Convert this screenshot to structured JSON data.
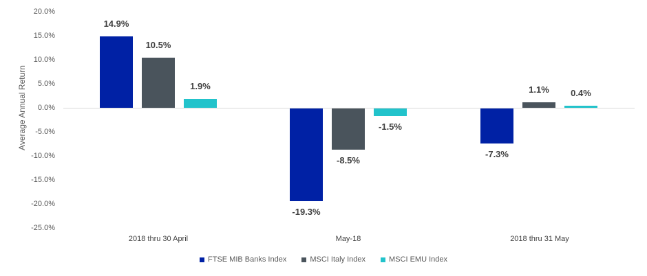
{
  "chart_data": {
    "type": "bar",
    "title": "",
    "xlabel": "",
    "ylabel": "Average Annual Return",
    "ylim": [
      -25,
      20
    ],
    "yticks": [
      "20.0%",
      "15.0%",
      "10.0%",
      "5.0%",
      "0.0%",
      "-5.0%",
      "-10.0%",
      "-15.0%",
      "-20.0%",
      "-25.0%"
    ],
    "grid": false,
    "legend_position": "bottom",
    "categories": [
      "2018 thru 30 April",
      "May-18",
      "2018 thru 31 May"
    ],
    "series": [
      {
        "name": "FTSE MIB Banks Index",
        "color": "#0021A5",
        "values": [
          14.9,
          -19.3,
          -7.3
        ],
        "labels": [
          "14.9%",
          "-19.3%",
          "-7.3%"
        ]
      },
      {
        "name": "MSCI Italy Index",
        "color": "#4A545C",
        "values": [
          10.5,
          -8.5,
          1.1
        ],
        "labels": [
          "10.5%",
          "-8.5%",
          "1.1%"
        ]
      },
      {
        "name": "MSCI EMU Index",
        "color": "#22C3CB",
        "values": [
          1.9,
          -1.5,
          0.4
        ],
        "labels": [
          "1.9%",
          "-1.5%",
          "0.4%"
        ]
      }
    ]
  }
}
